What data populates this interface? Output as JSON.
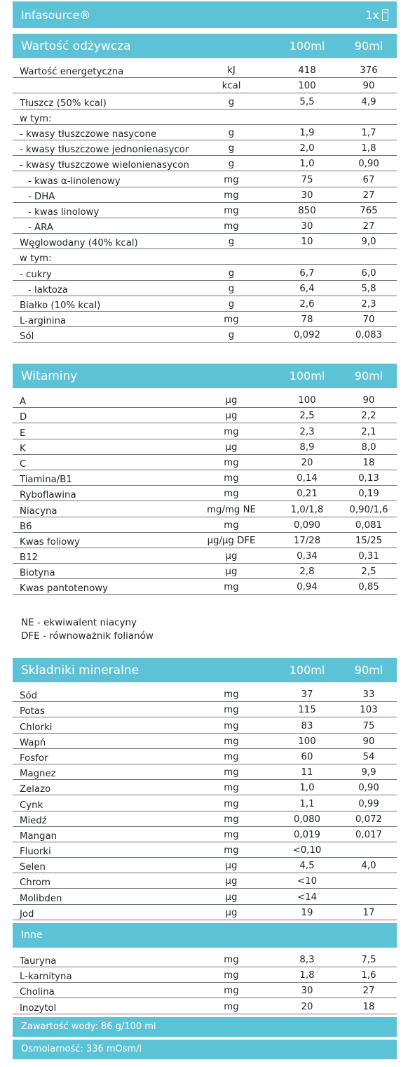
{
  "brand": "Infasource®",
  "count_label": "1x",
  "nutrition": {
    "title": "Wartość odżywcza",
    "col1": "100ml",
    "col2": "90ml",
    "rows": [
      {
        "label": "Wartość energetyczna",
        "unit": "kJ",
        "v100": "418",
        "v90": "376",
        "indent": 0
      },
      {
        "label": "",
        "unit": "kcal",
        "v100": "100",
        "v90": "90",
        "indent": 0
      },
      {
        "label": "Tłuszcz (50% kcal)",
        "unit": "g",
        "v100": "5,5",
        "v90": "4,9",
        "indent": 0
      },
      {
        "label": "w tym:",
        "unit": "",
        "v100": "",
        "v90": "",
        "indent": 0
      },
      {
        "label": "- kwasy tłuszczowe nasycone",
        "unit": "g",
        "v100": "1,9",
        "v90": "1,7",
        "indent": 0
      },
      {
        "label": "- kwasy tłuszczowe jednonienasycone",
        "unit": "g",
        "v100": "2,0",
        "v90": "1,8",
        "indent": 0
      },
      {
        "label": "- kwasy tłuszczowe wielonienasycone",
        "unit": "g",
        "v100": "1,0",
        "v90": "0,90",
        "indent": 0
      },
      {
        "label": "- kwas α-linolenowy",
        "unit": "mg",
        "v100": "75",
        "v90": "67",
        "indent": 1
      },
      {
        "label": "- DHA",
        "unit": "mg",
        "v100": "30",
        "v90": "27",
        "indent": 1
      },
      {
        "label": "- kwas linolowy",
        "unit": "mg",
        "v100": "850",
        "v90": "765",
        "indent": 1
      },
      {
        "label": "- ARA",
        "unit": "mg",
        "v100": "30",
        "v90": "27",
        "indent": 1
      },
      {
        "label": "Węglowodany (40% kcal)",
        "unit": "g",
        "v100": "10",
        "v90": "9,0",
        "indent": 0
      },
      {
        "label": "w tym:",
        "unit": "",
        "v100": "",
        "v90": "",
        "indent": 0
      },
      {
        "label": "- cukry",
        "unit": "g",
        "v100": "6,7",
        "v90": "6,0",
        "indent": 0
      },
      {
        "label": "- laktoza",
        "unit": "g",
        "v100": "6,4",
        "v90": "5,8",
        "indent": 1
      },
      {
        "label": "Białko (10% kcal)",
        "unit": "g",
        "v100": "2,6",
        "v90": "2,3",
        "indent": 0
      },
      {
        "label": "L-arginina",
        "unit": "mg",
        "v100": "78",
        "v90": "70",
        "indent": 0
      },
      {
        "label": "Sól",
        "unit": "g",
        "v100": "0,092",
        "v90": "0,083",
        "indent": 0
      }
    ]
  },
  "vitamins": {
    "title": "Witaminy",
    "col1": "100ml",
    "col2": "90ml",
    "rows": [
      {
        "label": "A",
        "unit": "µg",
        "v100": "100",
        "v90": "90"
      },
      {
        "label": "D",
        "unit": "µg",
        "v100": "2,5",
        "v90": "2,2"
      },
      {
        "label": "E",
        "unit": "mg",
        "v100": "2,3",
        "v90": "2,1"
      },
      {
        "label": "K",
        "unit": "µg",
        "v100": "8,9",
        "v90": "8,0"
      },
      {
        "label": "C",
        "unit": "mg",
        "v100": "20",
        "v90": "18"
      },
      {
        "label": "Tiamina/B1",
        "unit": "mg",
        "v100": "0,14",
        "v90": "0,13"
      },
      {
        "label": "Ryboflawina",
        "unit": "mg",
        "v100": "0,21",
        "v90": "0,19"
      },
      {
        "label": "Niacyna",
        "unit": "mg/mg NE",
        "v100": "1,0/1,8",
        "v90": "0,90/1,6"
      },
      {
        "label": "B6",
        "unit": "mg",
        "v100": "0,090",
        "v90": "0,081"
      },
      {
        "label": "Kwas foliowy",
        "unit": "µg/µg DFE",
        "v100": "17/28",
        "v90": "15/25"
      },
      {
        "label": "B12",
        "unit": "µg",
        "v100": "0,34",
        "v90": "0,31"
      },
      {
        "label": "Biotyna",
        "unit": "µg",
        "v100": "2,8",
        "v90": "2,5"
      },
      {
        "label": "Kwas pantotenowy",
        "unit": "mg",
        "v100": "0,94",
        "v90": "0,85"
      }
    ]
  },
  "notes": [
    "NE - ekwiwalent niacyny",
    "DFE - równoważnik folianów"
  ],
  "minerals": {
    "title": "Składniki mineralne",
    "col1": "100ml",
    "col2": "90ml",
    "rows": [
      {
        "label": "Sód",
        "unit": "mg",
        "v100": "37",
        "v90": "33"
      },
      {
        "label": "Potas",
        "unit": "mg",
        "v100": "115",
        "v90": "103"
      },
      {
        "label": "Chlorki",
        "unit": "mg",
        "v100": "83",
        "v90": "75"
      },
      {
        "label": "Wapń",
        "unit": "mg",
        "v100": "100",
        "v90": "90"
      },
      {
        "label": "Fosfor",
        "unit": "mg",
        "v100": "60",
        "v90": "54"
      },
      {
        "label": "Magnez",
        "unit": "mg",
        "v100": "11",
        "v90": "9,9"
      },
      {
        "label": "Żelazo",
        "unit": "mg",
        "v100": "1,0",
        "v90": "0,90"
      },
      {
        "label": "Cynk",
        "unit": "mg",
        "v100": "1,1",
        "v90": "0,99"
      },
      {
        "label": "Miedź",
        "unit": "mg",
        "v100": "0,080",
        "v90": "0,072"
      },
      {
        "label": "Mangan",
        "unit": "mg",
        "v100": "0,019",
        "v90": "0,017"
      },
      {
        "label": "Fluorki",
        "unit": "mg",
        "v100": "<0,10",
        "v90": ""
      },
      {
        "label": "Selen",
        "unit": "µg",
        "v100": "4,5",
        "v90": "4,0"
      },
      {
        "label": "Chrom",
        "unit": "µg",
        "v100": "<10",
        "v90": ""
      },
      {
        "label": "Molibden",
        "unit": "µg",
        "v100": "<14",
        "v90": ""
      },
      {
        "label": "Jod",
        "unit": "µg",
        "v100": "19",
        "v90": "17"
      }
    ]
  },
  "other": {
    "title": "Inne",
    "rows": [
      {
        "label": "Tauryna",
        "unit": "mg",
        "v100": "8,3",
        "v90": "7,5"
      },
      {
        "label": "L-karnityna",
        "unit": "mg",
        "v100": "1,8",
        "v90": "1,6"
      },
      {
        "label": "Cholina",
        "unit": "mg",
        "v100": "30",
        "v90": "27"
      },
      {
        "label": "Inozytol",
        "unit": "mg",
        "v100": "20",
        "v90": "18"
      }
    ]
  },
  "footer": {
    "water": "Zawartość wody: 86 g/100 ml",
    "osmolarity": "Osmolarność: 336 mOsm/l"
  }
}
